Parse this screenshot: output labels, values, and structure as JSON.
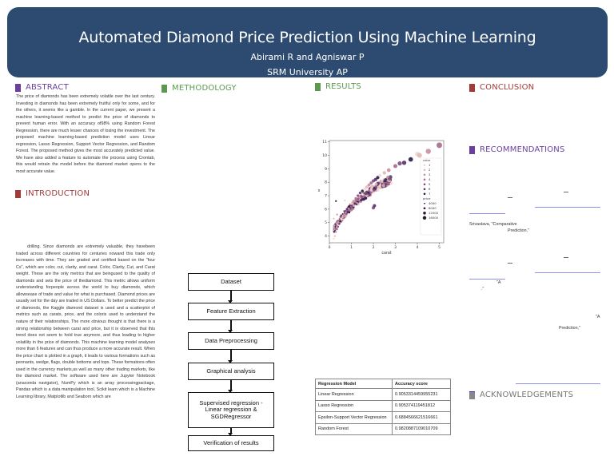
{
  "header": {
    "title": "Automated Diamond Price Prediction Using Machine Learning",
    "authors": "Abirami R and Agniswar P",
    "affiliation": "SRM University AP"
  },
  "colors": {
    "header_bg": "#2d4b70",
    "abstract": "#6b3fa0",
    "introduction": "#a33a3a",
    "methodology": "#5b9a4e",
    "results": "#5b9a4e",
    "conclusion": "#a33a3a",
    "recommendations": "#6b3fa0",
    "acknowledgements": "#777777",
    "link_line": "#8f8ff0"
  },
  "sections": {
    "abstract": {
      "heading": "ABSTRACT",
      "text": "The price of diamonds has been extremely volatile over the last century. Investing in diamonds has been extremely fruitful only for some, and for the others, it seems like a gamble. In the current paper, we present a machine learning-based method to predict the price of diamonds to prevent human error. With an accuracy of98% using Random Forest Regression, there are much lesser chances of losing the investment. The proposed machine learning-based prediction model uses Linear regression, Lasso Regression, Support Vector Regression, and Random Forest. The proposed method gives the most accurately predicted value. We have also added a feature to automate the process using Crontab, this would retrain the model before the diamond market opens to the most accurate value."
    },
    "introduction": {
      "heading": "INTRODUCTION",
      "text": "drilling. Since diamonds are extremely valuable, they havebeen traded across different countries for centuries nowand this trade only increases with time. They are graded and certified based on the \"four Cs\", which are color, cut, clarity, and carat. Color, Clarity, Cut, and Carat weight. These are the only metrics that are beingused to the quality of diamonds and sets the price of thediamond. This metric allows uniform understanding forpeople across the world to buy diamonds, which allowsease of trade and value for what is purchased. Diamond prices are usually set for the day are traded in US Dollars. To better predict the price of diamonds, the Kaggle diamond dataset is used and a scatterplot of metrics such as carats, price, and the coloris used to understand the nature of their relationships. The more obvious thought is that there is a strong relationship between carat and price, but it is observed that this trend does not seem to hold true anymore, and thus leading to higher volatility in the price of diamonds. This machine learning model analyses more than 6 features and can thus produce a more accurate result.  When the price chart is plotted in a graph, it leads to various formations such as pennants, wedge, flags, double bottoms and tops. These formations often used in the currency markets,as well as many other trading markets, like the diamond market. The software used here are Jupyter Notebook (anaconda navigator), NumPy which is an array processingpackage, Pandas which is a data manipulation tool, Scikit learn which is a Machine Learning library, Matplotlib and Seaborn which are"
    },
    "methodology": {
      "heading": "METHODOLOGY",
      "flowchart": [
        "Dataset",
        "Feature Extraction",
        "Data Preprocessing",
        "Graphical analysis",
        "Supervised regression - Linear regression & SGDRegressor",
        "Verification of results"
      ]
    },
    "results": {
      "heading": "RESULTS",
      "table": {
        "headers": [
          "Regression Model",
          "Accuracy score"
        ],
        "rows": [
          [
            "Linear Regression",
            "0.9053314459955231"
          ],
          [
            "Lasso Regression",
            "0.905374119451812"
          ],
          [
            "Epsilon-Support Vector Regression",
            "0.6884566621516661"
          ],
          [
            "Random Forest",
            "0.9820887109010709"
          ]
        ]
      }
    },
    "conclusion": {
      "heading": "CONCLUSION"
    },
    "recommendations": {
      "heading": "RECOMMENDATIONS",
      "fragments": [
        "Srivastava, \"Comparative",
        "Prediction,\"",
        "\"A",
        ".\"",
        "\"A",
        "Prediction,\""
      ]
    },
    "acknowledgements": {
      "heading": "ACKNOWLEDGEMENTS"
    }
  },
  "chart_data": {
    "type": "scatter",
    "title": "",
    "xlabel": "carat",
    "ylabel": "x",
    "xlim": [
      0,
      5.2
    ],
    "ylim": [
      3.5,
      11.1
    ],
    "xticks": [
      0,
      1,
      2,
      3,
      4,
      5
    ],
    "yticks": [
      4,
      5,
      6,
      7,
      8,
      9,
      10,
      11
    ],
    "legend": {
      "position": "right",
      "hue_title": "color",
      "hue_entries": [
        "1",
        "2",
        "3",
        "4",
        "5",
        "6",
        "7"
      ],
      "hue_colors": [
        "#f0d9d4",
        "#e3b7b5",
        "#c98f9e",
        "#a8698c",
        "#7f4a7f",
        "#55306a",
        "#2a1a44"
      ],
      "size_title": "price",
      "size_entries": [
        "4000",
        "8000",
        "12000",
        "16000"
      ]
    },
    "points_description": "Concave curved relationship; x rises from ~3.8 at carat 0.2 to ~10.7 at carat 5; dense cluster between carat 0.3 and 2.5; outliers near (2.0, 6.1) and (0.3, 6.6)",
    "points": [
      [
        0.2,
        3.8
      ],
      [
        0.25,
        4.0
      ],
      [
        0.3,
        4.3
      ],
      [
        0.35,
        4.5
      ],
      [
        0.4,
        4.7
      ],
      [
        0.45,
        4.9
      ],
      [
        0.5,
        5.1
      ],
      [
        0.55,
        5.25
      ],
      [
        0.6,
        5.4
      ],
      [
        0.65,
        5.55
      ],
      [
        0.7,
        5.7
      ],
      [
        0.75,
        5.85
      ],
      [
        0.8,
        6.0
      ],
      [
        0.9,
        6.2
      ],
      [
        1.0,
        6.4
      ],
      [
        1.05,
        6.5
      ],
      [
        1.1,
        6.6
      ],
      [
        1.2,
        6.8
      ],
      [
        1.3,
        7.0
      ],
      [
        1.4,
        7.2
      ],
      [
        1.5,
        7.35
      ],
      [
        1.6,
        7.5
      ],
      [
        1.7,
        7.65
      ],
      [
        1.8,
        7.8
      ],
      [
        1.9,
        7.95
      ],
      [
        2.0,
        8.1
      ],
      [
        2.1,
        8.2
      ],
      [
        2.2,
        8.35
      ],
      [
        2.3,
        8.5
      ],
      [
        2.5,
        8.7
      ],
      [
        2.7,
        8.9
      ],
      [
        3.0,
        9.2
      ],
      [
        3.2,
        9.4
      ],
      [
        3.4,
        9.45
      ],
      [
        3.7,
        9.7
      ],
      [
        4.0,
        10.1
      ],
      [
        4.1,
        10.0
      ],
      [
        4.5,
        10.3
      ],
      [
        5.0,
        10.75
      ],
      [
        2.0,
        6.1
      ],
      [
        2.05,
        6.25
      ],
      [
        0.3,
        6.6
      ],
      [
        0.7,
        6.65
      ],
      [
        0.2,
        5.3
      ],
      [
        0.35,
        5.6
      ]
    ]
  }
}
